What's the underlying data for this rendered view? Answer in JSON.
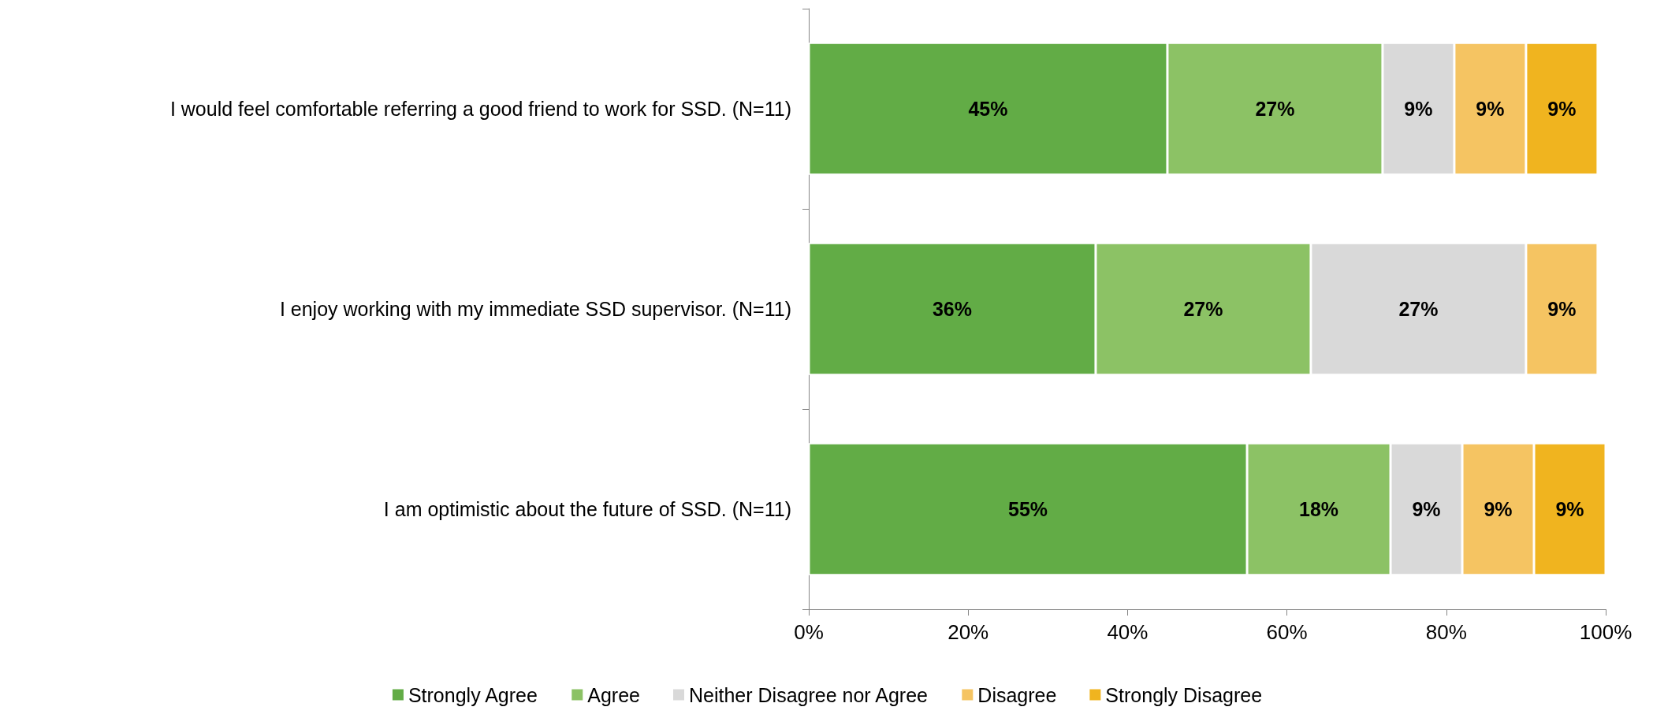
{
  "chart_data": {
    "type": "bar",
    "orientation": "horizontal",
    "stacked": true,
    "categories": [
      "I would feel comfortable referring a good friend to work for SSD. (N=11)",
      "I enjoy working with my immediate SSD supervisor. (N=11)",
      "I am optimistic about the future of SSD. (N=11)"
    ],
    "series": [
      {
        "name": "Strongly Agree",
        "color": "#62ac46",
        "values": [
          45,
          36,
          55
        ],
        "value_labels": [
          "45%",
          "36%",
          "55%"
        ]
      },
      {
        "name": "Agree",
        "color": "#8cc265",
        "values": [
          27,
          27,
          18
        ],
        "value_labels": [
          "27%",
          "27%",
          "18%"
        ]
      },
      {
        "name": "Neither Disagree nor Agree",
        "color": "#d9d9d9",
        "values": [
          9,
          27,
          9
        ],
        "value_labels": [
          "9%",
          "27%",
          "9%"
        ]
      },
      {
        "name": "Disagree",
        "color": "#f5c462",
        "values": [
          9,
          9,
          9
        ],
        "value_labels": [
          "9%",
          "9%",
          "9%"
        ]
      },
      {
        "name": "Strongly Disagree",
        "color": "#f0b41f",
        "values": [
          9,
          null,
          9
        ],
        "value_labels": [
          "9%",
          null,
          "9%"
        ]
      }
    ],
    "xlim": [
      0,
      100
    ],
    "xticks": [
      {
        "value": 0,
        "label": "0%"
      },
      {
        "value": 20,
        "label": "20%"
      },
      {
        "value": 40,
        "label": "40%"
      },
      {
        "value": 60,
        "label": "60%"
      },
      {
        "value": 80,
        "label": "80%"
      },
      {
        "value": 100,
        "label": "100%"
      }
    ],
    "grid": false,
    "legend": "bottom"
  }
}
